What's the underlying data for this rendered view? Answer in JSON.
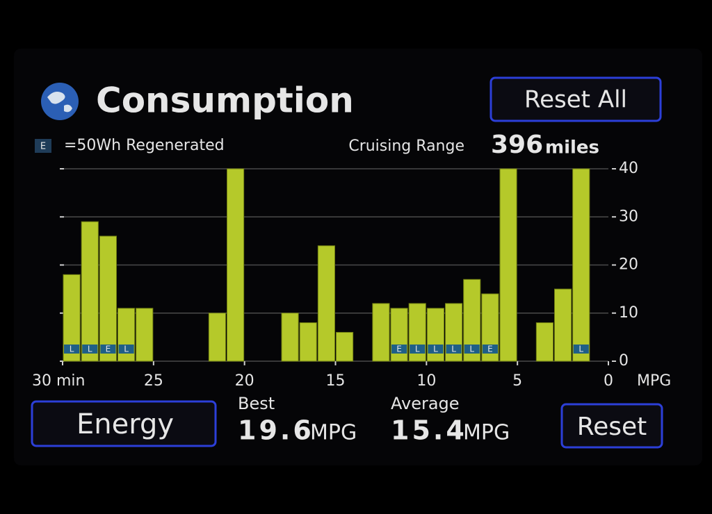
{
  "header": {
    "title": "Consumption",
    "reset_all": "Reset All"
  },
  "legend": {
    "symbol": "E",
    "text": "=50Wh Regenerated"
  },
  "range": {
    "label": "Cruising Range",
    "value": 396,
    "unit": "miles"
  },
  "chart_data": {
    "type": "bar",
    "x": [
      29.5,
      28.5,
      27.5,
      26.5,
      25.5,
      21.5,
      20.5,
      17.5,
      16.5,
      15.5,
      14.5,
      12.5,
      11.5,
      10.5,
      9.5,
      8.5,
      7.5,
      6.5,
      5.5,
      3.5,
      2.5,
      1.5
    ],
    "values": [
      18,
      29,
      26,
      11,
      11,
      10,
      40,
      10,
      8,
      24,
      6,
      12,
      11,
      12,
      11,
      12,
      17,
      14,
      40,
      8,
      15,
      40
    ],
    "regen_labels": [
      "L",
      "L",
      "E",
      "L",
      null,
      null,
      null,
      null,
      null,
      null,
      null,
      null,
      "E",
      "L",
      "L",
      "L",
      "L",
      "E",
      null,
      null,
      null,
      "L"
    ],
    "color": "#b5c92a",
    "regen_color": "#1f5f86",
    "xlim": [
      30,
      0
    ],
    "xticks": [
      {
        "value": 30,
        "label": "30 min"
      },
      25,
      20,
      15,
      10,
      5,
      0
    ],
    "y_label": "MPG",
    "ylim": [
      0,
      40
    ],
    "yticks": [
      0,
      10,
      20,
      30,
      40
    ],
    "grid": true
  },
  "footer": {
    "energy": "Energy",
    "best": {
      "label": "Best",
      "value": 19.6,
      "unit": "MPG"
    },
    "average": {
      "label": "Average",
      "value": 15.4,
      "unit": "MPG"
    },
    "reset": "Reset"
  }
}
